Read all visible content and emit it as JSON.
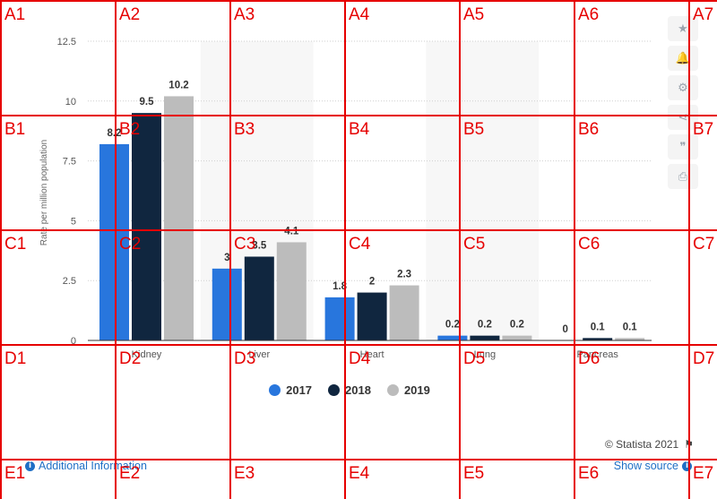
{
  "chart_data": {
    "type": "bar",
    "categories": [
      "Kidney",
      "Liver",
      "Heart",
      "Lung",
      "Pancreas"
    ],
    "series": [
      {
        "name": "2017",
        "color": "#2876dd",
        "values": [
          8.2,
          3.0,
          1.8,
          0.2,
          0
        ]
      },
      {
        "name": "2018",
        "color": "#10263f",
        "values": [
          9.5,
          3.5,
          2.0,
          0.2,
          0.1
        ]
      },
      {
        "name": "2019",
        "color": "#bcbcbc",
        "values": [
          10.2,
          4.1,
          2.3,
          0.2,
          0.1
        ]
      }
    ],
    "data_labels": [
      [
        "8.2",
        "3",
        "1.8",
        "0.2",
        "0"
      ],
      [
        "9.5",
        "3.5",
        "2",
        "0.2",
        "0.1"
      ],
      [
        "10.2",
        "4.1",
        "2.3",
        "0.2",
        "0.1"
      ]
    ],
    "category_labels_visible": [
      "Kidney",
      "Liver",
      "Heart",
      "Lung",
      "Pancreas"
    ],
    "ylabel": "Rate per million population",
    "xlabel": "",
    "yticks": [
      "0",
      "2.5",
      "5",
      "7.5",
      "10",
      "12.5"
    ],
    "ytick_values": [
      0,
      2.5,
      5,
      7.5,
      10,
      12.5
    ],
    "ylim": [
      0,
      12.5
    ],
    "grid": true,
    "legend_position": "bottom-center"
  },
  "legend": {
    "items": [
      {
        "label": "2017",
        "color": "#2876dd"
      },
      {
        "label": "2018",
        "color": "#10263f"
      },
      {
        "label": "2019",
        "color": "#bcbcbc"
      }
    ]
  },
  "toolbar": {
    "icons": [
      "star-icon",
      "bell-icon",
      "gear-icon",
      "share-icon",
      "quote-icon",
      "print-icon"
    ]
  },
  "footer": {
    "credit": "© Statista 2021",
    "additional_info": "Additional Information",
    "show_source": "Show source"
  },
  "overlay": {
    "cells": [
      "A1",
      "A2",
      "A3",
      "A4",
      "A5",
      "A6",
      "A7",
      "B1",
      "B2",
      "B3",
      "B4",
      "B5",
      "B6",
      "B7",
      "C1",
      "C2",
      "C3",
      "C4",
      "C5",
      "C6",
      "C7",
      "D1",
      "D2",
      "D3",
      "D4",
      "D5",
      "D6",
      "D7",
      "E1",
      "E2",
      "E3",
      "E4",
      "E5",
      "E6",
      "E7"
    ],
    "color": "#e60000"
  }
}
